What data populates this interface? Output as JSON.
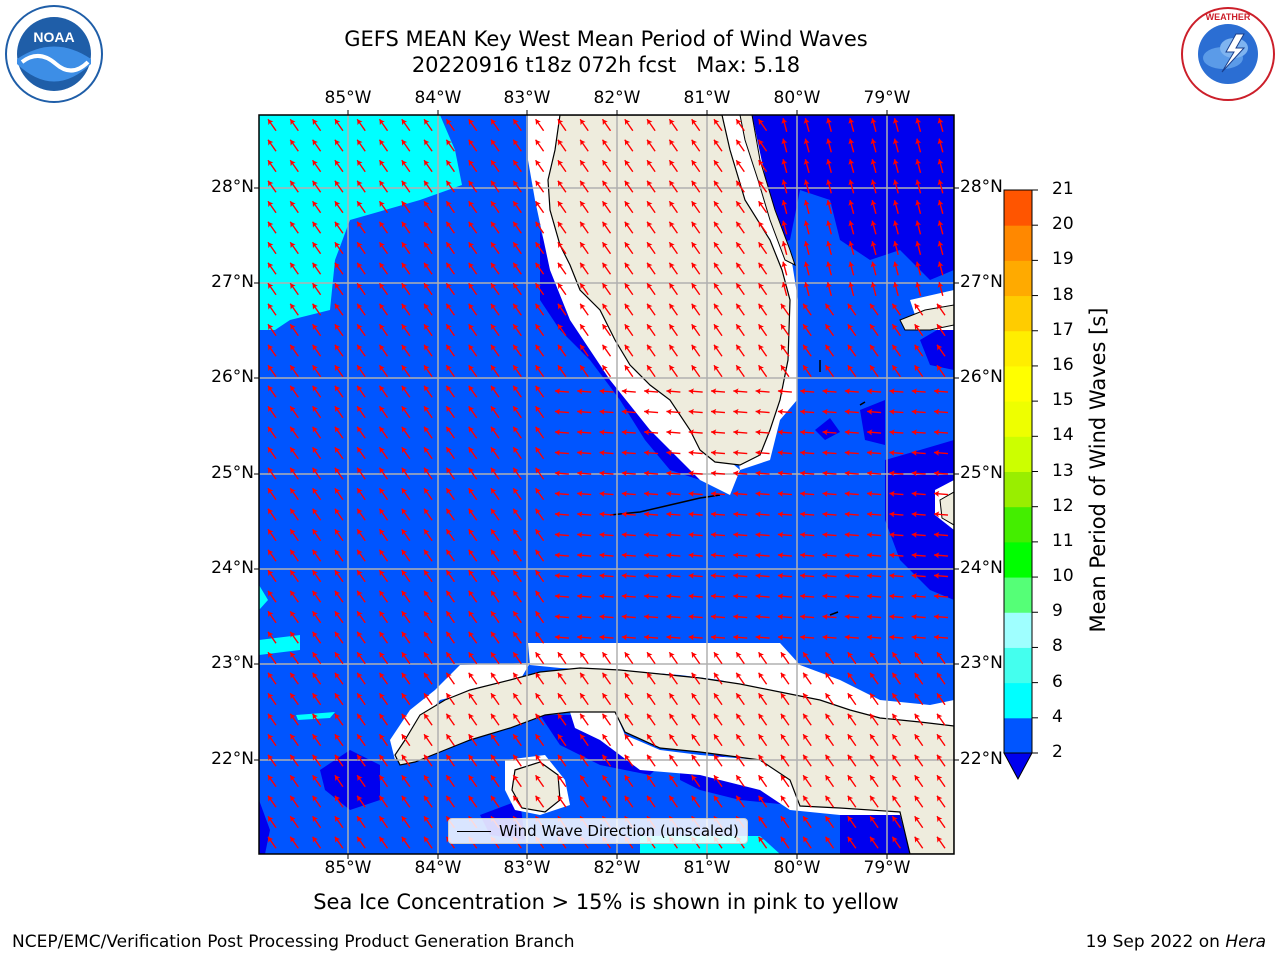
{
  "header": {
    "title_line1": "GEFS MEAN Key West Mean Period of Wind Waves",
    "title_line2": "20220916 t18z 072h fcst   Max: 5.18"
  },
  "logos": {
    "noaa": "NOAA",
    "nws": "NATIONAL WEATHER SERVICE"
  },
  "map": {
    "lon_ticks": [
      "85°W",
      "84°W",
      "83°W",
      "82°W",
      "81°W",
      "80°W",
      "79°W"
    ],
    "lat_ticks": [
      "28°N",
      "27°N",
      "26°N",
      "25°N",
      "24°N",
      "23°N",
      "22°N"
    ],
    "arrow_color": "#ff0000",
    "land_color": "#eeecdd",
    "legend_label": "Wind Wave Direction (unscaled)"
  },
  "colorbar": {
    "title": "Mean Period of Wind Waves [s]",
    "levels": [
      "2",
      "4",
      "6",
      "8",
      "9",
      "10",
      "11",
      "12",
      "13",
      "14",
      "15",
      "16",
      "17",
      "18",
      "19",
      "20",
      "21"
    ],
    "colors": [
      "#0055ff",
      "#00ffff",
      "#44ffee",
      "#9fffff",
      "#55ff77",
      "#00ff00",
      "#44ee00",
      "#99ee00",
      "#ccff00",
      "#eeff00",
      "#ffff00",
      "#ffee00",
      "#ffcc00",
      "#ffaa00",
      "#ff8800",
      "#ff5500",
      "#ff2200",
      "#ff0000"
    ],
    "extend_min_color": "#0000ee"
  },
  "footer": {
    "subtitle": "Sea Ice Concentration > 15% is shown in pink to yellow",
    "left": "NCEP/EMC/Verification Post Processing Product Generation Branch",
    "date": "19 Sep 2022 on",
    "machine": "Hera"
  }
}
